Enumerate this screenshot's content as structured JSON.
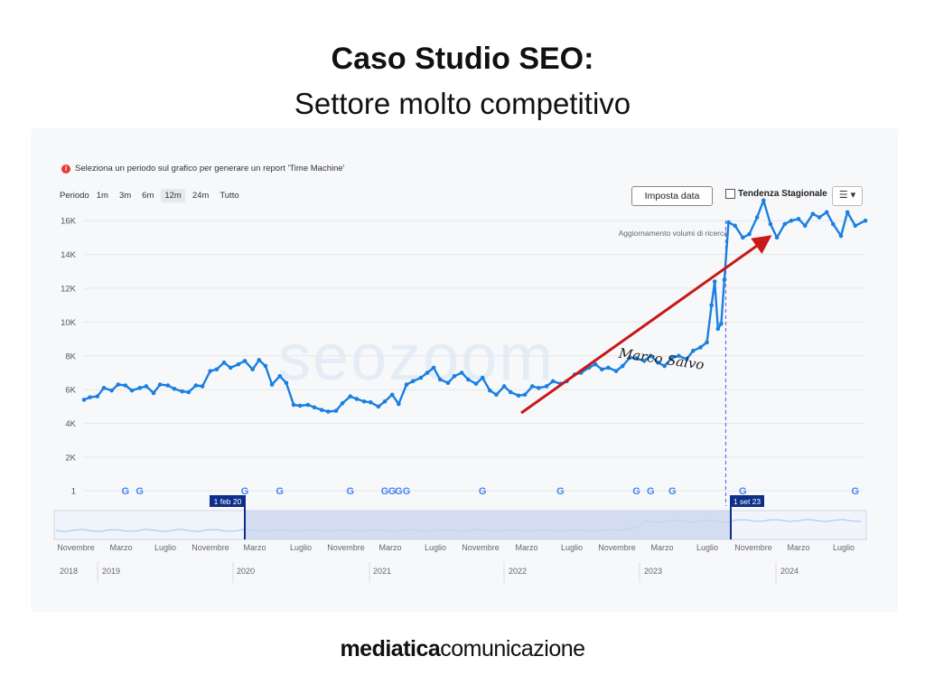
{
  "slide": {
    "title": "Caso Studio SEO:",
    "subtitle": "Settore molto competitivo",
    "footer_bold": "mediatica",
    "footer_rest": "comunicazione"
  },
  "toolbar": {
    "info_text": "Seleziona un periodo sul grafico per generare un report 'Time Machine'",
    "period_label": "Periodo",
    "periods": [
      "1m",
      "3m",
      "6m",
      "12m",
      "24m",
      "Tutto"
    ],
    "active_period": "12m",
    "set_date_label": "Imposta data",
    "seasonal_label": "Tendenza Stagionale",
    "menu_icon": "hamburger-icon"
  },
  "colors": {
    "line": "#1a7fe0",
    "arrow": "#c81818",
    "marker": "#6f6fe0",
    "navigator_selection": "#c9d4ec",
    "navigator_handle": "#0d2f8a"
  },
  "chart_data": {
    "type": "line",
    "series_name": "",
    "y_ticks": [
      "1",
      "2K",
      "4K",
      "6K",
      "8K",
      "10K",
      "12K",
      "14K",
      "16K"
    ],
    "ylim": [
      0,
      16000
    ],
    "x_range": [
      "2020-02-01",
      "2024-09-23"
    ],
    "points": [
      [
        "2020-02-01",
        3400
      ],
      [
        "2020-02-14",
        3550
      ],
      [
        "2020-03-01",
        3600
      ],
      [
        "2020-03-15",
        4100
      ],
      [
        "2020-04-01",
        3950
      ],
      [
        "2020-04-15",
        4300
      ],
      [
        "2020-05-01",
        4250
      ],
      [
        "2020-05-15",
        3950
      ],
      [
        "2020-06-01",
        4100
      ],
      [
        "2020-06-15",
        4200
      ],
      [
        "2020-07-01",
        3800
      ],
      [
        "2020-07-15",
        4300
      ],
      [
        "2020-08-01",
        4250
      ],
      [
        "2020-08-15",
        4050
      ],
      [
        "2020-09-01",
        3900
      ],
      [
        "2020-09-15",
        3850
      ],
      [
        "2020-10-01",
        4250
      ],
      [
        "2020-10-15",
        4200
      ],
      [
        "2020-11-01",
        5100
      ],
      [
        "2020-11-15",
        5200
      ],
      [
        "2020-12-01",
        5600
      ],
      [
        "2020-12-15",
        5300
      ],
      [
        "2021-01-01",
        5500
      ],
      [
        "2021-01-15",
        5700
      ],
      [
        "2021-02-01",
        5200
      ],
      [
        "2021-02-15",
        5750
      ],
      [
        "2021-03-01",
        5400
      ],
      [
        "2021-03-15",
        4300
      ],
      [
        "2021-04-01",
        4800
      ],
      [
        "2021-04-15",
        4400
      ],
      [
        "2021-05-01",
        3100
      ],
      [
        "2021-05-15",
        3050
      ],
      [
        "2021-06-01",
        3100
      ],
      [
        "2021-06-15",
        2950
      ],
      [
        "2021-07-01",
        2800
      ],
      [
        "2021-07-15",
        2700
      ],
      [
        "2021-08-01",
        2750
      ],
      [
        "2021-08-15",
        3200
      ],
      [
        "2021-09-01",
        3600
      ],
      [
        "2021-09-15",
        3450
      ],
      [
        "2021-10-01",
        3300
      ],
      [
        "2021-10-15",
        3250
      ],
      [
        "2021-11-01",
        3000
      ],
      [
        "2021-11-15",
        3300
      ],
      [
        "2021-12-01",
        3700
      ],
      [
        "2021-12-15",
        3150
      ],
      [
        "2022-01-01",
        4300
      ],
      [
        "2022-01-15",
        4500
      ],
      [
        "2022-02-01",
        4700
      ],
      [
        "2022-02-15",
        5000
      ],
      [
        "2022-03-01",
        5300
      ],
      [
        "2022-03-15",
        4600
      ],
      [
        "2022-04-01",
        4400
      ],
      [
        "2022-04-15",
        4800
      ],
      [
        "2022-05-01",
        5000
      ],
      [
        "2022-05-15",
        4600
      ],
      [
        "2022-06-01",
        4350
      ],
      [
        "2022-06-15",
        4700
      ],
      [
        "2022-07-01",
        3950
      ],
      [
        "2022-07-15",
        3700
      ],
      [
        "2022-08-01",
        4200
      ],
      [
        "2022-08-15",
        3850
      ],
      [
        "2022-09-01",
        3650
      ],
      [
        "2022-09-15",
        3700
      ],
      [
        "2022-10-01",
        4200
      ],
      [
        "2022-10-15",
        4100
      ],
      [
        "2022-11-01",
        4200
      ],
      [
        "2022-11-15",
        4500
      ],
      [
        "2022-12-01",
        4350
      ],
      [
        "2022-12-15",
        4500
      ],
      [
        "2023-01-01",
        4900
      ],
      [
        "2023-01-15",
        5000
      ],
      [
        "2023-02-01",
        5300
      ],
      [
        "2023-02-15",
        5500
      ],
      [
        "2023-03-01",
        5200
      ],
      [
        "2023-03-15",
        5300
      ],
      [
        "2023-04-01",
        5100
      ],
      [
        "2023-04-15",
        5400
      ],
      [
        "2023-05-01",
        5900
      ],
      [
        "2023-05-15",
        5850
      ],
      [
        "2023-06-01",
        5700
      ],
      [
        "2023-06-15",
        6000
      ],
      [
        "2023-07-01",
        5600
      ],
      [
        "2023-07-15",
        5400
      ],
      [
        "2023-08-01",
        5900
      ],
      [
        "2023-08-15",
        6000
      ],
      [
        "2023-09-01",
        5800
      ],
      [
        "2023-09-15",
        6300
      ],
      [
        "2023-10-01",
        6500
      ],
      [
        "2023-10-15",
        6800
      ],
      [
        "2023-10-25",
        9000
      ],
      [
        "2023-11-01",
        10400
      ],
      [
        "2023-11-08",
        7600
      ],
      [
        "2023-11-15",
        7900
      ],
      [
        "2023-11-22",
        10500
      ],
      [
        "2023-12-01",
        13900
      ],
      [
        "2023-12-15",
        13700
      ],
      [
        "2024-01-01",
        13000
      ],
      [
        "2024-01-15",
        13200
      ],
      [
        "2024-02-01",
        14200
      ],
      [
        "2024-02-15",
        15200
      ],
      [
        "2024-03-01",
        13800
      ],
      [
        "2024-03-15",
        13000
      ],
      [
        "2024-04-01",
        13800
      ],
      [
        "2024-04-15",
        14000
      ],
      [
        "2024-05-01",
        14100
      ],
      [
        "2024-05-15",
        13700
      ],
      [
        "2024-06-01",
        14400
      ],
      [
        "2024-06-15",
        14200
      ],
      [
        "2024-07-01",
        14500
      ],
      [
        "2024-07-15",
        13800
      ],
      [
        "2024-08-01",
        13100
      ],
      [
        "2024-08-15",
        14500
      ],
      [
        "2024-09-01",
        13700
      ],
      [
        "2024-09-23",
        14000
      ]
    ],
    "google_update_dates": [
      "2020-05-01",
      "2020-06-01",
      "2021-01-15",
      "2021-04-01",
      "2021-09-01",
      "2021-11-15",
      "2021-12-01",
      "2021-12-15",
      "2022-01-01",
      "2022-06-15",
      "2022-12-01",
      "2023-05-15",
      "2023-06-15",
      "2023-08-01",
      "2024-01-01",
      "2024-09-01"
    ],
    "annotation": {
      "label": "Aggiornamento volumi di ricerca",
      "date": "2023-11-25"
    },
    "signature": "Marco Salvo",
    "watermark": "seozoom",
    "navigator": {
      "start_label": "1 feb 20",
      "end_label": "1 set 23",
      "month_ticks": [
        "Novembre",
        "Marzo",
        "Luglio",
        "Novembre",
        "Marzo",
        "Luglio",
        "Novembre",
        "Marzo",
        "Luglio",
        "Novembre",
        "Marzo",
        "Luglio",
        "Novembre",
        "Marzo",
        "Luglio",
        "Novembre",
        "Marzo",
        "Luglio"
      ],
      "year_ticks": [
        "2018",
        "2019",
        "2020",
        "2021",
        "2022",
        "2023",
        "2024"
      ]
    }
  }
}
